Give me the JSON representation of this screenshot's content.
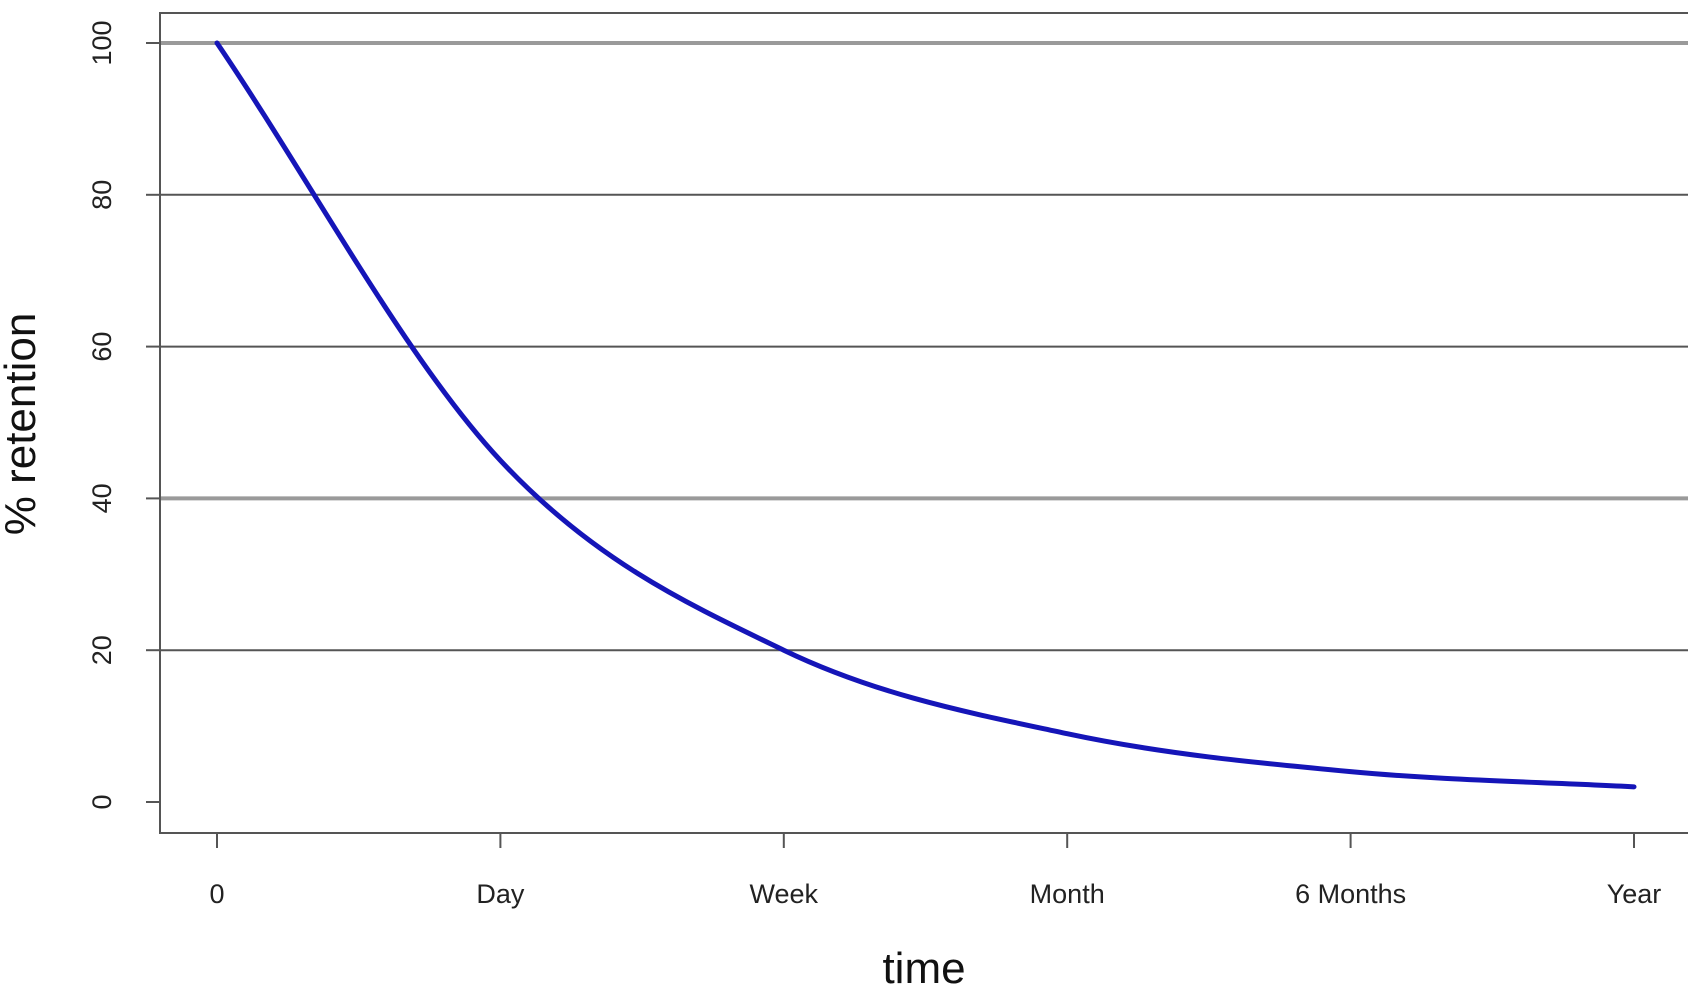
{
  "chart_data": {
    "type": "line",
    "title": "",
    "xlabel": "time",
    "ylabel": "% retention",
    "x_scale": "categorical-ordinal",
    "x_ticks": [
      "0",
      "Day",
      "Week",
      "Month",
      "6 Months",
      "Year"
    ],
    "y_ticks": [
      "0",
      "20",
      "40",
      "60",
      "80",
      "100"
    ],
    "ylim": [
      0,
      100
    ],
    "grid": "horizontal",
    "grid_lines_y": [
      20,
      40,
      60,
      80,
      100
    ],
    "legend": "none",
    "series": [
      {
        "color": "#1515b8",
        "x": [
          "0",
          "Day",
          "Week",
          "Month",
          "6 Months",
          "Year"
        ],
        "y": [
          100,
          45,
          20,
          9,
          4,
          2
        ]
      }
    ],
    "colors": {
      "line": "#1515b8",
      "gridline": "#555555",
      "gridline_light": "#9a9a9a",
      "axis": "#555555",
      "text": "#222222"
    }
  }
}
